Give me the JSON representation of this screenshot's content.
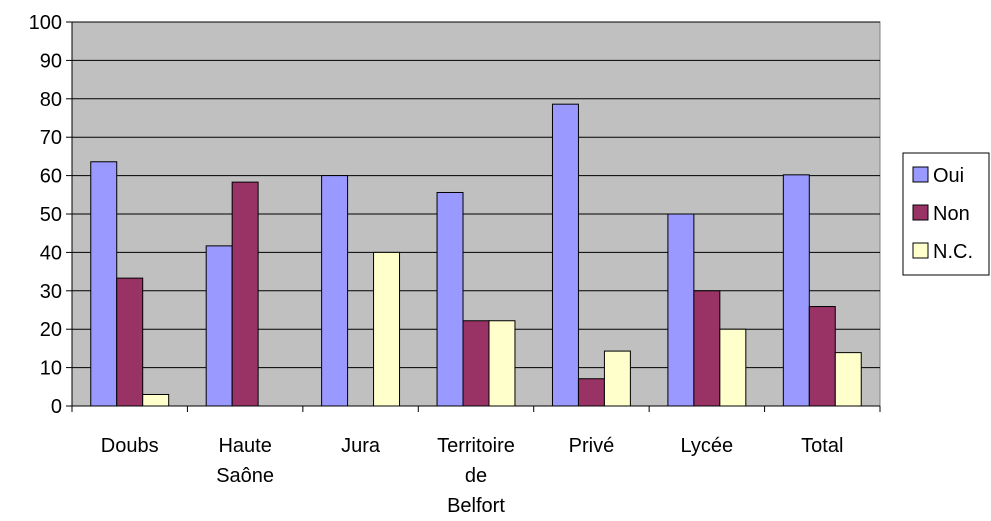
{
  "chart_data": {
    "type": "bar",
    "categories": [
      [
        "Doubs"
      ],
      [
        "Haute",
        "Saône"
      ],
      [
        "Jura"
      ],
      [
        "Territoire",
        "de",
        "Belfort"
      ],
      [
        "Privé"
      ],
      [
        "Lycée"
      ],
      [
        "Total"
      ]
    ],
    "series": [
      {
        "name": "Oui",
        "color": "#9999ff",
        "values": [
          63.6,
          41.7,
          60,
          55.6,
          78.6,
          50,
          60.2
        ]
      },
      {
        "name": "Non",
        "color": "#993366",
        "values": [
          33.3,
          58.3,
          0,
          22.2,
          7.1,
          30,
          25.9
        ]
      },
      {
        "name": "N.C.",
        "color": "#ffffcc",
        "values": [
          3.0,
          0,
          40,
          22.2,
          14.3,
          20,
          13.9
        ]
      }
    ],
    "ylim": [
      0,
      100
    ],
    "yticks": [
      "0",
      "10",
      "20",
      "30",
      "40",
      "50",
      "60",
      "70",
      "80",
      "90",
      "100"
    ],
    "grid": true,
    "plot_background": "#c0c0c0",
    "legend_position": "right"
  }
}
